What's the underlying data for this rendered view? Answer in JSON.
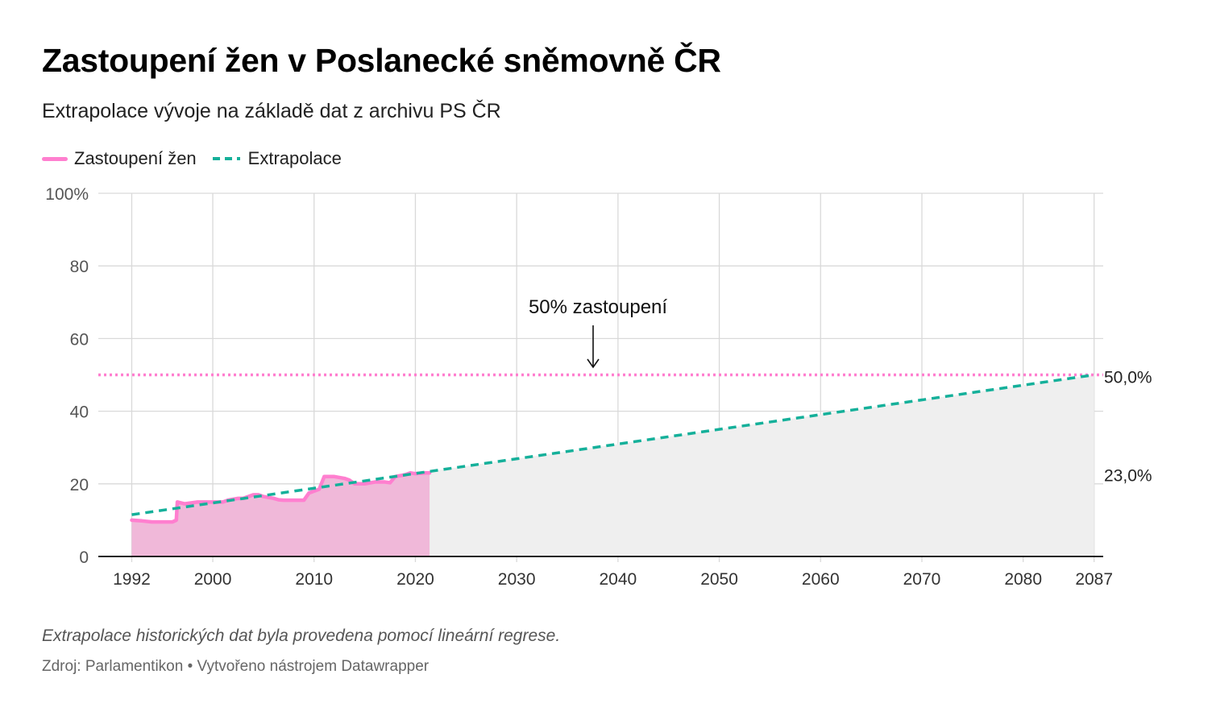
{
  "title": "Zastoupení žen v Poslanecké sněmovně ČR",
  "subtitle": "Extrapolace vývoje na základě dat z archivu PS ČR",
  "note": "Extrapolace historických dat byla provedena pomocí lineární regrese.",
  "source": "Zdroj: Parlamentikon • Vytvořeno nástrojem Datawrapper",
  "legend": {
    "women_label": "Zastoupení žen",
    "extrapolation_label": "Extrapolace"
  },
  "colors": {
    "women": "#ff7fcf",
    "women_fill": "#f0b8d9",
    "extrapolation": "#15b09a",
    "extrapolation_fill": "#efefef",
    "threshold": "#ff7fcf",
    "grid": "#d9d9d9",
    "axis": "#222222",
    "tick_text": "#555555"
  },
  "chart_data": {
    "type": "line",
    "xlim": [
      1992,
      2087
    ],
    "ylim": [
      0,
      100
    ],
    "x_ticks": [
      1992,
      2000,
      2010,
      2020,
      2030,
      2040,
      2050,
      2060,
      2070,
      2080,
      2087
    ],
    "y_ticks": [
      0,
      20,
      40,
      60,
      80,
      100
    ],
    "y_tick_labels": [
      "0",
      "20",
      "40",
      "60",
      "80",
      "100%"
    ],
    "grid": true,
    "legend_position": "top-left",
    "series": [
      {
        "name": "Zastoupení žen",
        "x": [
          1992.0,
          1993.0,
          1994.0,
          1995.0,
          1996.0,
          1996.4,
          1996.5,
          1997.2,
          1997.5,
          1998.5,
          1999.0,
          2001.0,
          2001.5,
          2002.5,
          2003.0,
          2004.0,
          2004.5,
          2005.0,
          2006.0,
          2006.5,
          2007.0,
          2008.0,
          2009.0,
          2009.5,
          2010.0,
          2010.5,
          2011.0,
          2012.0,
          2013.0,
          2013.5,
          2014.0,
          2015.0,
          2016.0,
          2017.0,
          2017.5,
          2018.0,
          2019.0,
          2019.5,
          2020.0,
          2021.0,
          2021.4
        ],
        "y": [
          10.0,
          9.8,
          9.5,
          9.5,
          9.5,
          10.0,
          15.0,
          14.5,
          14.6,
          15.0,
          15.0,
          15.0,
          15.5,
          16.0,
          16.0,
          17.0,
          17.0,
          16.5,
          16.0,
          15.6,
          15.5,
          15.5,
          15.5,
          17.5,
          18.0,
          18.5,
          22.0,
          22.0,
          21.5,
          21.0,
          20.0,
          20.0,
          20.5,
          20.5,
          20.3,
          22.0,
          22.5,
          23.0,
          22.8,
          23.0,
          23.0
        ]
      },
      {
        "name": "Extrapolace",
        "x": [
          1992,
          2087
        ],
        "y": [
          11.5,
          50.0
        ]
      }
    ],
    "threshold": {
      "y": 50,
      "label": "50% zastoupení"
    },
    "end_labels": [
      {
        "y": 50.0,
        "text": "50,0%"
      },
      {
        "y": 23.0,
        "text": "23,0%"
      }
    ]
  }
}
